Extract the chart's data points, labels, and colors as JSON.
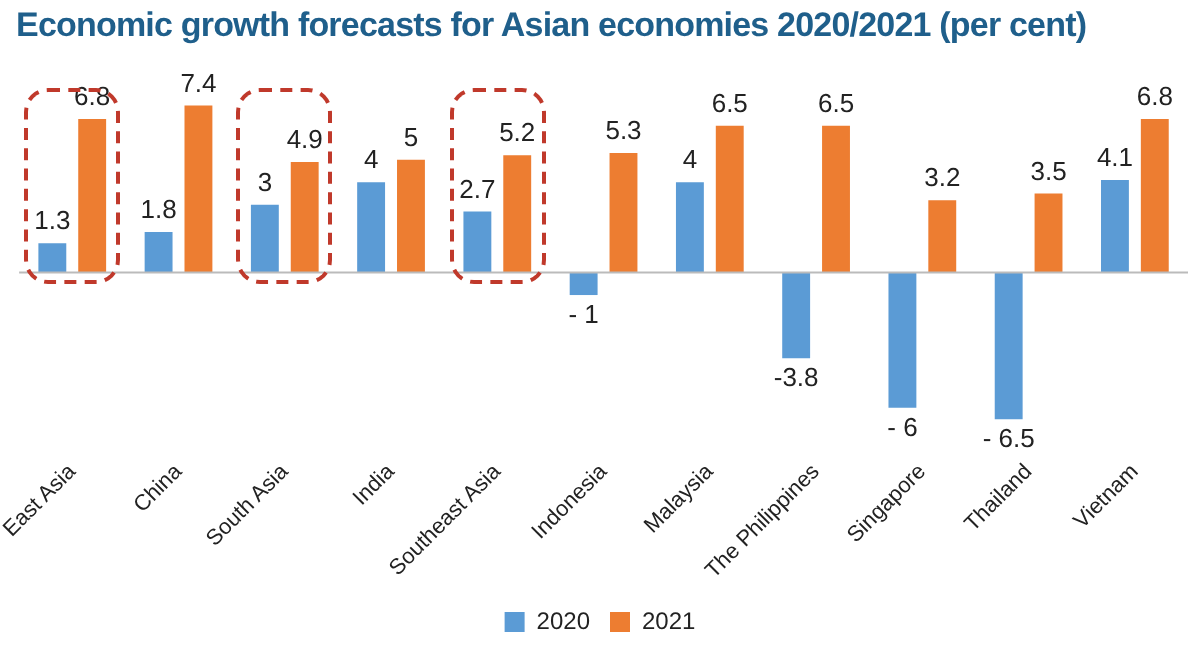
{
  "chart_data": {
    "type": "bar",
    "title": "Economic growth forecasts for Asian economies 2020/2021 (per cent)",
    "categories": [
      "East Asia",
      "China",
      "South Asia",
      "India",
      "Southeast Asia",
      "Indonesia",
      "Malaysia",
      "The Philippines",
      "Singapore",
      "Thailand",
      "Vietnam"
    ],
    "series": [
      {
        "name": "2020",
        "color": "#5b9bd5",
        "values": [
          1.3,
          1.8,
          3,
          4,
          2.7,
          -1,
          4,
          -3.8,
          -6,
          -6.5,
          4.1
        ],
        "value_labels": [
          "1.3",
          "1.8",
          "3",
          "4",
          "2.7",
          "- 1",
          "4",
          "-3.8",
          "- 6",
          "- 6.5",
          "4.1"
        ]
      },
      {
        "name": "2021",
        "color": "#ed7d31",
        "values": [
          6.8,
          7.4,
          4.9,
          5,
          5.2,
          5.3,
          6.5,
          6.5,
          3.2,
          3.5,
          6.8
        ],
        "value_labels": [
          "6.8",
          "7.4",
          "4.9",
          "5",
          "5.2",
          "5.3",
          "6.5",
          "6.5",
          "3.2",
          "3.5",
          "6.8"
        ]
      }
    ],
    "legend": "bottom",
    "grid": false
  }
}
